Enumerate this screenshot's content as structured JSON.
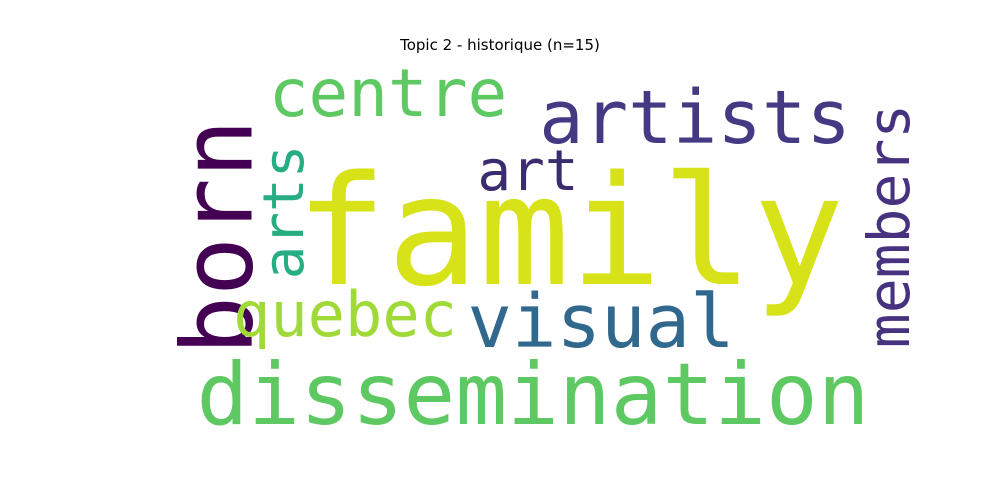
{
  "title": "Topic 2 - historique (n=15)",
  "chart_data": {
    "type": "wordcloud",
    "title": "Topic 2 - historique (n=15)",
    "words": [
      {
        "text": "family",
        "orientation": "horizontal",
        "color": "#d8e219"
      },
      {
        "text": "dissemination",
        "orientation": "horizontal",
        "color": "#5ec962"
      },
      {
        "text": "born",
        "orientation": "vertical",
        "color": "#440154"
      },
      {
        "text": "artists",
        "orientation": "horizontal",
        "color": "#443983"
      },
      {
        "text": "members",
        "orientation": "vertical",
        "color": "#46327e"
      },
      {
        "text": "visual",
        "orientation": "horizontal",
        "color": "#31688e"
      },
      {
        "text": "centre",
        "orientation": "horizontal",
        "color": "#5ec962"
      },
      {
        "text": "quebec",
        "orientation": "horizontal",
        "color": "#a0da39"
      },
      {
        "text": "arts",
        "orientation": "vertical",
        "color": "#26ad81"
      },
      {
        "text": "art",
        "orientation": "horizontal",
        "color": "#3b2c6f"
      }
    ]
  }
}
